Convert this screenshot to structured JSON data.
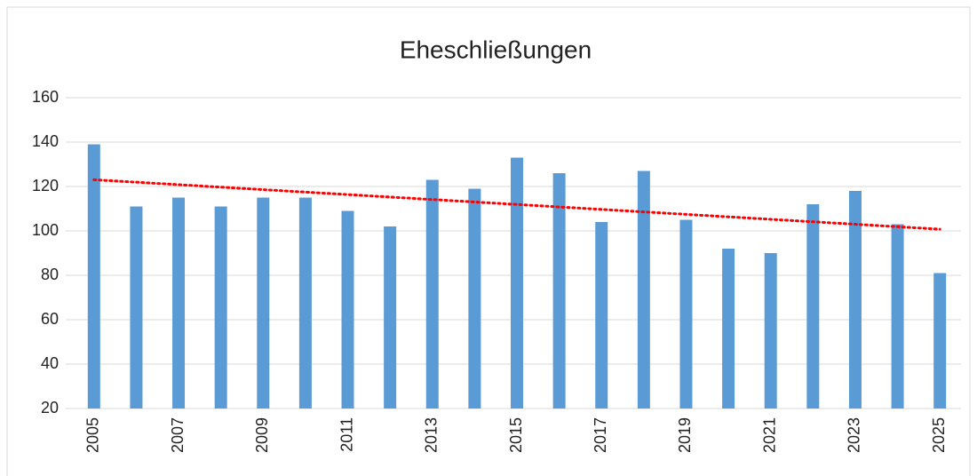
{
  "chart_data": {
    "type": "bar",
    "title": "Eheschließungen",
    "categories": [
      "2005",
      null,
      "2007",
      null,
      "2009",
      null,
      "2011",
      null,
      "2013",
      null,
      "2015",
      null,
      "2017",
      null,
      "2019",
      null,
      "2021",
      null,
      "2023",
      null,
      "2025"
    ],
    "values": [
      139,
      111,
      115,
      111,
      115,
      115,
      109,
      102,
      123,
      119,
      133,
      126,
      104,
      127,
      105,
      92,
      90,
      112,
      118,
      103,
      81
    ],
    "color": "#5b9bd5",
    "ylim": [
      20,
      160
    ],
    "yticks": [
      20,
      40,
      60,
      80,
      100,
      120,
      140,
      160
    ],
    "grid": true,
    "trendline": "linear",
    "trendline_color": "#ff0000"
  }
}
